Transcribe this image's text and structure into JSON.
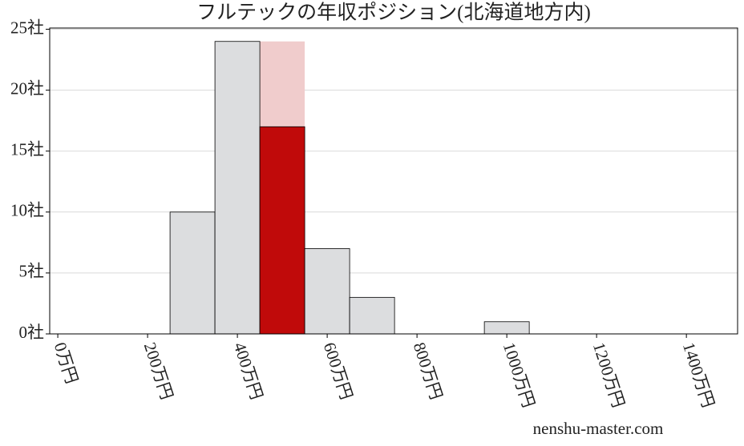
{
  "chart_data": {
    "type": "histogram",
    "title": "フルテックの年収ポジション(北海道地方内)",
    "bins": [
      250,
      350,
      450,
      550,
      650,
      750,
      850,
      950,
      1050
    ],
    "values": [
      10,
      24,
      17,
      7,
      3,
      0,
      0,
      1
    ],
    "color": "#dcdddf",
    "highlight": {
      "bin": 2,
      "color": "#c00a0a",
      "band_value": 24,
      "band_color": "#f0cccc"
    },
    "xlim": [
      -18,
      1514
    ],
    "xticks": [
      {
        "value": 0,
        "label": "0万円"
      },
      {
        "value": 200,
        "label": "200万円"
      },
      {
        "value": 400,
        "label": "400万円"
      },
      {
        "value": 600,
        "label": "600万円"
      },
      {
        "value": 800,
        "label": "800万円"
      },
      {
        "value": 1000,
        "label": "1000万円"
      },
      {
        "value": 1200,
        "label": "1200万円"
      },
      {
        "value": 1400,
        "label": "1400万円"
      }
    ],
    "ylim": [
      0,
      25.1
    ],
    "yticks": [
      {
        "value": 0,
        "label": "0社"
      },
      {
        "value": 5,
        "label": "5社"
      },
      {
        "value": 10,
        "label": "10社"
      },
      {
        "value": 15,
        "label": "15社"
      },
      {
        "value": 20,
        "label": "20社"
      },
      {
        "value": 25,
        "label": "25社"
      }
    ],
    "grid": true,
    "watermark": "nenshu-master.com"
  }
}
